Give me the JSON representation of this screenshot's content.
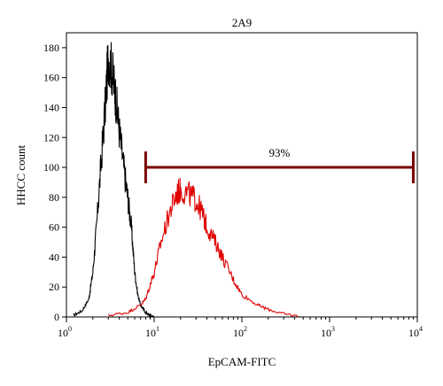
{
  "chart_data": {
    "type": "line",
    "title": "2A9",
    "xlabel": "EpCAM-FITC",
    "ylabel": "HHCC count",
    "x_scale": "log",
    "xlim": [
      1,
      10000
    ],
    "ylim": [
      0,
      190
    ],
    "x_ticks": [
      {
        "base": "10",
        "exp": "0",
        "value": 1
      },
      {
        "base": "10",
        "exp": "1",
        "value": 10
      },
      {
        "base": "10",
        "exp": "2",
        "value": 100
      },
      {
        "base": "10",
        "exp": "3",
        "value": 1000
      },
      {
        "base": "10",
        "exp": "4",
        "value": 10000
      }
    ],
    "y_ticks": [
      "0",
      "20",
      "40",
      "60",
      "80",
      "100",
      "120",
      "140",
      "160",
      "180"
    ],
    "series": [
      {
        "color": "#000000",
        "x": [
          1.2,
          1.5,
          1.8,
          2.0,
          2.2,
          2.5,
          2.8,
          3.0,
          3.3,
          3.6,
          4.0,
          4.5,
          5.0,
          5.5,
          6.0,
          6.5,
          7.0,
          8.0,
          9.0,
          10.0
        ],
        "values": [
          1,
          4,
          12,
          30,
          60,
          105,
          145,
          175,
          165,
          150,
          125,
          100,
          80,
          60,
          30,
          15,
          8,
          3,
          1,
          0
        ]
      },
      {
        "color": "#e00000",
        "x": [
          3,
          5,
          7,
          8,
          10,
          12,
          15,
          18,
          20,
          25,
          30,
          35,
          40,
          50,
          60,
          80,
          100,
          150,
          200,
          300,
          500
        ],
        "values": [
          1,
          3,
          8,
          12,
          30,
          50,
          70,
          82,
          85,
          82,
          78,
          70,
          60,
          50,
          40,
          25,
          15,
          8,
          5,
          2,
          0
        ]
      }
    ],
    "gate": {
      "label": "93%",
      "x_start": 8,
      "x_end": 9000,
      "y": 100,
      "color": "#7a0000"
    }
  }
}
